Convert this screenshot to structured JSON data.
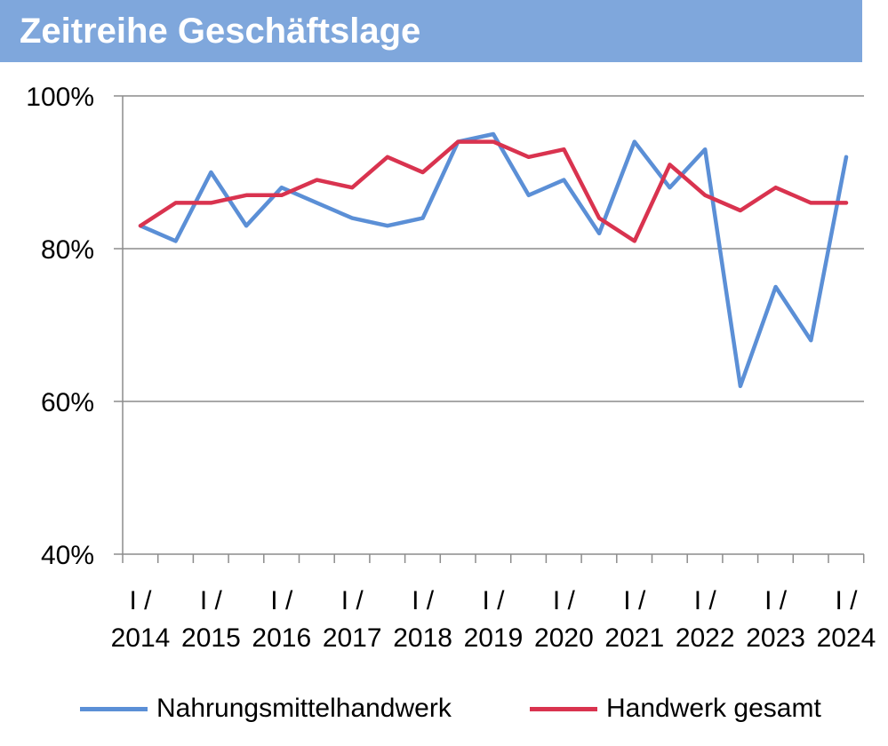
{
  "title": "Zeitreihe Geschäftslage",
  "chart_data": {
    "type": "line",
    "title": "Zeitreihe Geschäftslage",
    "xlabel": "",
    "ylabel": "",
    "ylim": [
      40,
      100
    ],
    "yticks": [
      "40%",
      "60%",
      "80%",
      "100%"
    ],
    "ytick_values": [
      40,
      60,
      80,
      100
    ],
    "grid": true,
    "legend_position": "bottom",
    "x_label_prefix": "I /",
    "x_labels": [
      "2014",
      "2015",
      "2016",
      "2017",
      "2018",
      "2019",
      "2020",
      "2021",
      "2022",
      "2023",
      "2024"
    ],
    "x": [
      "I/2014",
      "II/2014",
      "I/2015",
      "II/2015",
      "I/2016",
      "II/2016",
      "I/2017",
      "II/2017",
      "I/2018",
      "II/2018",
      "I/2019",
      "II/2019",
      "I/2020",
      "II/2020",
      "I/2021",
      "II/2021",
      "I/2022",
      "II/2022",
      "I/2023",
      "II/2023",
      "I/2024"
    ],
    "series": [
      {
        "name": "Nahrungsmittelhandwerk",
        "color": "#5b8fd6",
        "values": [
          83,
          81,
          90,
          83,
          88,
          86,
          84,
          83,
          84,
          94,
          95,
          87,
          89,
          82,
          94,
          88,
          93,
          62,
          75,
          68,
          92
        ]
      },
      {
        "name": "Handwerk gesamt",
        "color": "#d9334f",
        "values": [
          83,
          86,
          86,
          87,
          87,
          89,
          88,
          92,
          90,
          94,
          94,
          92,
          93,
          84,
          81,
          91,
          87,
          85,
          88,
          86,
          86
        ]
      }
    ]
  }
}
